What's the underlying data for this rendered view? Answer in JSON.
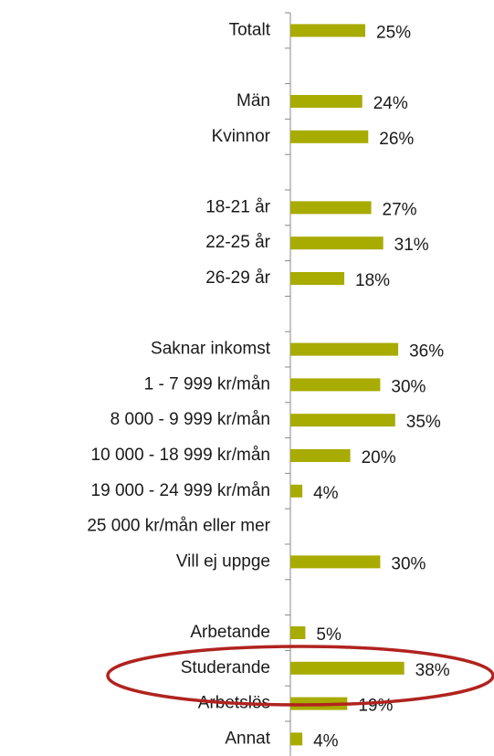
{
  "chart_data": {
    "type": "bar",
    "orientation": "horizontal",
    "color": "#a8ab00",
    "categories": [
      "Totalt",
      null,
      "Män",
      "Kvinnor",
      null,
      "18-21 år",
      "22-25 år",
      "26-29 år",
      null,
      "Saknar inkomst",
      "1 - 7 999 kr/mån",
      "8 000 - 9 999 kr/mån",
      "10 000 - 18 999 kr/mån",
      "19 000 - 24 999 kr/mån",
      "25 000 kr/mån eller mer",
      "Vill ej uppge",
      null,
      "Arbetande",
      "Studerande",
      "Arbetslös",
      "Annat"
    ],
    "values": [
      25,
      null,
      24,
      26,
      null,
      27,
      31,
      18,
      null,
      36,
      30,
      35,
      20,
      4,
      null,
      30,
      null,
      5,
      38,
      19,
      4
    ],
    "value_labels": [
      "25%",
      null,
      "24%",
      "26%",
      null,
      "27%",
      "31%",
      "18%",
      null,
      "36%",
      "30%",
      "35%",
      "20%",
      "4%",
      null,
      "30%",
      null,
      "5%",
      "38%",
      "19%",
      "4%"
    ]
  }
}
